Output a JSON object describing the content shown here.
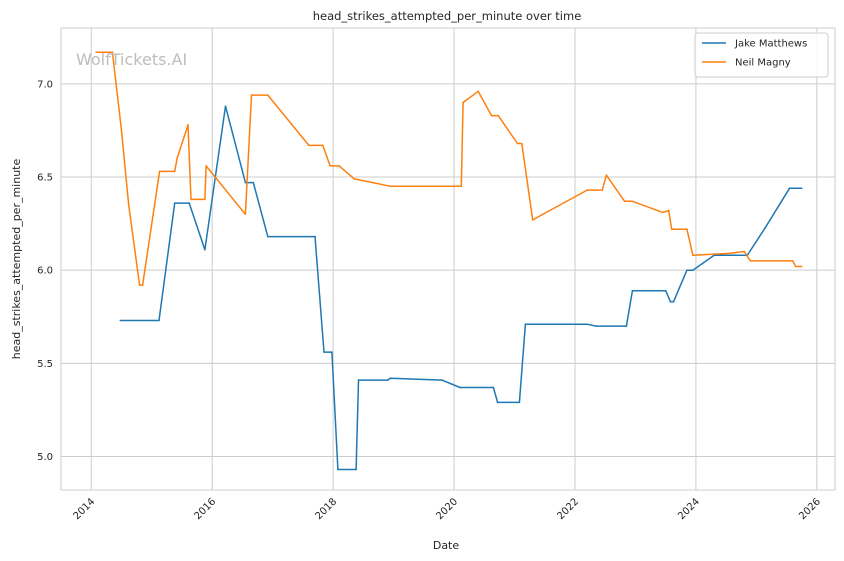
{
  "watermark": "WolfTickets.AI",
  "chart_data": {
    "type": "line",
    "title": "head_strikes_attempted_per_minute over time",
    "xlabel": "Date",
    "ylabel": "head_strikes_attempted_per_minute",
    "xlim": [
      2013.5,
      2026.3
    ],
    "ylim": [
      4.82,
      7.3
    ],
    "x_ticks": [
      2014,
      2016,
      2018,
      2020,
      2022,
      2024,
      2026
    ],
    "y_ticks": [
      "5.0",
      "5.5",
      "6.0",
      "6.5",
      "7.0"
    ],
    "grid": true,
    "legend_position": "top-right",
    "series": [
      {
        "name": "Jake Matthews",
        "color": "#1f77b4",
        "x": [
          2014.48,
          2015.12,
          2015.38,
          2015.62,
          2015.88,
          2016.22,
          2016.55,
          2016.68,
          2016.92,
          2017.7,
          2017.85,
          2017.98,
          2018.08,
          2018.38,
          2018.42,
          2018.9,
          2018.95,
          2019.8,
          2020.1,
          2020.65,
          2020.72,
          2021.08,
          2021.18,
          2022.2,
          2022.35,
          2022.85,
          2022.95,
          2023.5,
          2023.58,
          2023.63,
          2023.85,
          2023.95,
          2024.3,
          2024.75,
          2024.85,
          2025.15,
          2025.55,
          2025.75
        ],
        "values": [
          5.73,
          5.73,
          6.36,
          6.36,
          6.11,
          6.88,
          6.47,
          6.47,
          6.18,
          6.18,
          5.56,
          5.56,
          4.93,
          4.93,
          5.41,
          5.41,
          5.42,
          5.41,
          5.37,
          5.37,
          5.29,
          5.29,
          5.71,
          5.71,
          5.7,
          5.7,
          5.89,
          5.89,
          5.83,
          5.83,
          6.0,
          6.0,
          6.08,
          6.08,
          6.08,
          6.23,
          6.44,
          6.44
        ]
      },
      {
        "name": "Neil Magny",
        "color": "#ff7f0e",
        "x": [
          2014.08,
          2014.35,
          2014.5,
          2014.62,
          2014.8,
          2014.85,
          2015.13,
          2015.38,
          2015.42,
          2015.6,
          2015.65,
          2015.88,
          2015.9,
          2016.55,
          2016.65,
          2016.92,
          2017.6,
          2017.83,
          2017.95,
          2018.1,
          2018.35,
          2018.95,
          2020.12,
          2020.15,
          2020.4,
          2020.62,
          2020.73,
          2021.05,
          2021.12,
          2021.3,
          2022.2,
          2022.45,
          2022.52,
          2022.82,
          2022.95,
          2023.45,
          2023.55,
          2023.6,
          2023.85,
          2023.95,
          2024.55,
          2024.8,
          2024.9,
          2025.6,
          2025.65,
          2025.75
        ],
        "values": [
          7.17,
          7.17,
          6.75,
          6.35,
          5.92,
          5.92,
          6.53,
          6.53,
          6.6,
          6.78,
          6.38,
          6.38,
          6.56,
          6.3,
          6.94,
          6.94,
          6.67,
          6.67,
          6.56,
          6.56,
          6.49,
          6.45,
          6.45,
          6.9,
          6.96,
          6.83,
          6.83,
          6.68,
          6.68,
          6.27,
          6.43,
          6.43,
          6.51,
          6.37,
          6.37,
          6.31,
          6.32,
          6.22,
          6.22,
          6.08,
          6.09,
          6.1,
          6.05,
          6.05,
          6.02,
          6.02
        ]
      }
    ]
  }
}
